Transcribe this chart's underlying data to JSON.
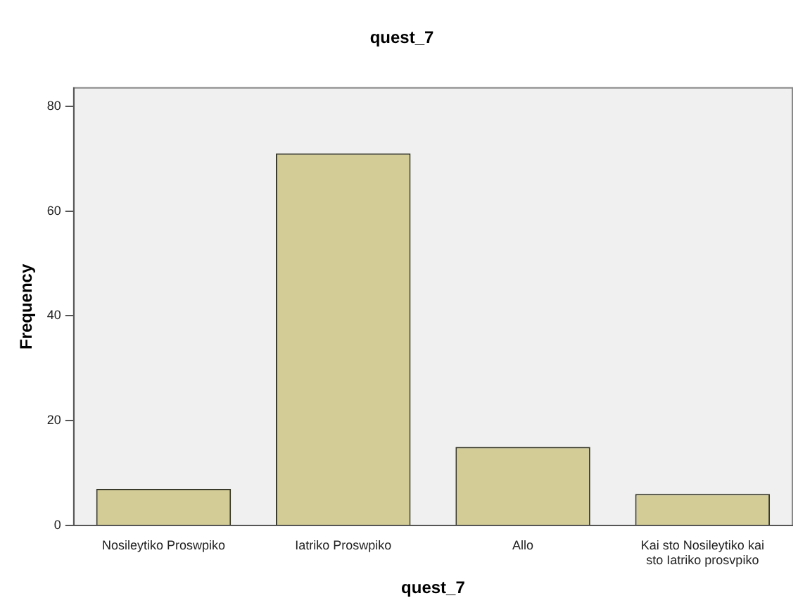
{
  "chart_data": {
    "type": "bar",
    "title": "quest_7",
    "xlabel": "quest_7",
    "ylabel": "Frequency",
    "categories": [
      "Nosileytiko Proswpiko",
      "Iatriko Proswpiko",
      "Allo",
      "Kai sto Nosileytiko kai sto Iatriko prosvpiko"
    ],
    "values": [
      7,
      71,
      15,
      6
    ],
    "color": "#d3cc96",
    "ylim": [
      0,
      83.5
    ],
    "yticks": [
      0,
      20,
      40,
      60,
      80
    ],
    "grid": false,
    "legend": false
  }
}
